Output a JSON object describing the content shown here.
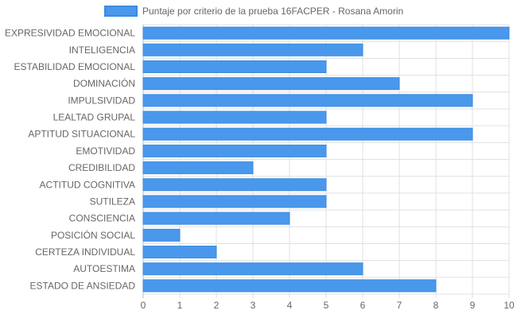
{
  "chart_data": {
    "type": "bar",
    "orientation": "horizontal",
    "title": "",
    "xlabel": "",
    "ylabel": "",
    "categories": [
      "EXPRESIVIDAD EMOCIONAL",
      "INTELIGENCIA",
      "ESTABILIDAD EMOCIONAL",
      "DOMINACIÓN",
      "IMPULSIVIDAD",
      "LEALTAD GRUPAL",
      "APTITUD SITUACIONAL",
      "EMOTIVIDAD",
      "CREDIBILIDAD",
      "ACTITUD COGNITIVA",
      "SUTILEZA",
      "CONSCIENCIA",
      "POSICIÓN SOCIAL",
      "CERTEZA INDIVIDUAL",
      "AUTOESTIMA",
      "ESTADO DE ANSIEDAD"
    ],
    "series": [
      {
        "name": "Puntaje por criterio de la prueba 16FACPER - Rosana Amorin",
        "values": [
          10,
          6,
          5,
          7,
          9,
          5,
          9,
          5,
          3,
          5,
          5,
          4,
          1,
          2,
          6,
          8
        ]
      }
    ],
    "xlim": [
      0,
      10
    ],
    "xticks": [
      "0",
      "1",
      "2",
      "3",
      "4",
      "5",
      "6",
      "7",
      "8",
      "9",
      "10"
    ],
    "grid": true,
    "legend_position": "top",
    "colors": {
      "bar_fill": "#4a98ec",
      "bar_stroke": "#3a8ae0",
      "grid": "#e0e0e0",
      "axis": "#bdbdbd",
      "text": "#666666"
    }
  }
}
